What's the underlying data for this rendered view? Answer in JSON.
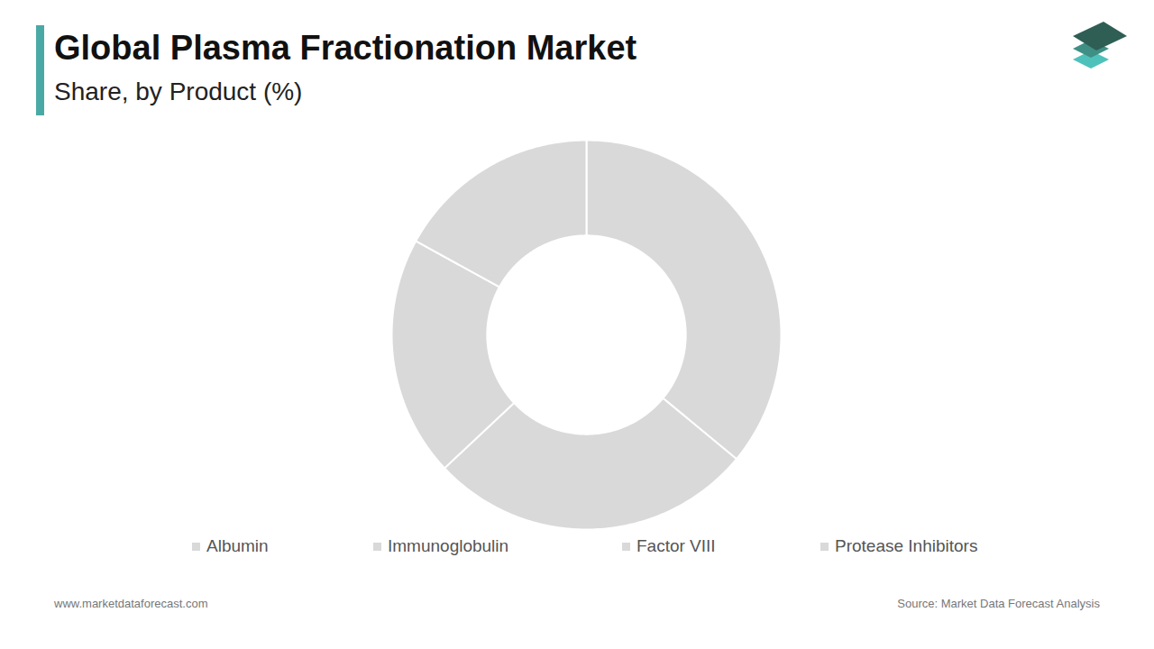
{
  "chart_data": {
    "type": "pie",
    "title": "Global Plasma Fractionation Market",
    "subtitle": "Share, by Product (%)",
    "categories": [
      "Albumin",
      "Immunoglobulin",
      "Factor VIII",
      "Protease Inhibitors"
    ],
    "values": [
      36,
      27,
      20,
      17
    ],
    "colors": [
      "#d9d9d9",
      "#d9d9d9",
      "#d9d9d9",
      "#d9d9d9"
    ],
    "legend": "bottom",
    "website": "www.marketdataforecast.com",
    "source": "Source: Market Data Forecast Analysis"
  }
}
